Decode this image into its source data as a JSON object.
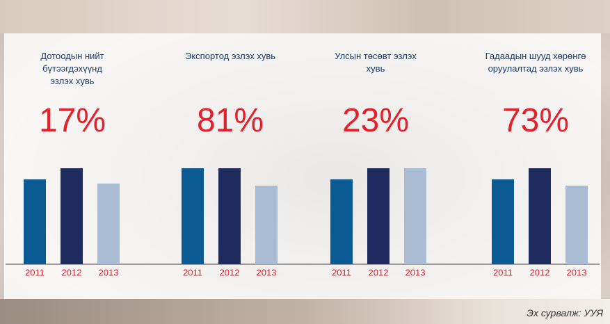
{
  "chart_data": [
    {
      "type": "bar",
      "title": "Дотоодын нийт бүтээгдэхүүнд эзлэх хувь",
      "headline": "17%",
      "categories": [
        "2011",
        "2012",
        "2013"
      ],
      "values": [
        122,
        138,
        116
      ],
      "colors": [
        "#0b5a93",
        "#1f2a5e",
        "#a9bcd4"
      ],
      "ylim": [
        0,
        138
      ]
    },
    {
      "type": "bar",
      "title": "Экспортод эзлэх хувь",
      "headline": "81%",
      "categories": [
        "2011",
        "2012",
        "2013"
      ],
      "values": [
        138,
        138,
        113
      ],
      "colors": [
        "#0b5a93",
        "#1f2a5e",
        "#a9bcd4"
      ],
      "ylim": [
        0,
        138
      ]
    },
    {
      "type": "bar",
      "title": "Улсын төсөвт эзлэх хувь",
      "headline": "23%",
      "categories": [
        "2011",
        "2012",
        "2013"
      ],
      "values": [
        122,
        138,
        138
      ],
      "colors": [
        "#0b5a93",
        "#1f2a5e",
        "#a9bcd4"
      ],
      "ylim": [
        0,
        138
      ]
    },
    {
      "type": "bar",
      "title": "Гадаадын шууд хөрөнгө оруулалтад эзлэх хувь",
      "headline": "73%",
      "categories": [
        "2011",
        "2012",
        "2013"
      ],
      "values": [
        122,
        138,
        113
      ],
      "colors": [
        "#0b5a93",
        "#1f2a5e",
        "#a9bcd4"
      ],
      "ylim": [
        0,
        138
      ]
    }
  ],
  "source": "Эх сурвалж: УУЯ"
}
